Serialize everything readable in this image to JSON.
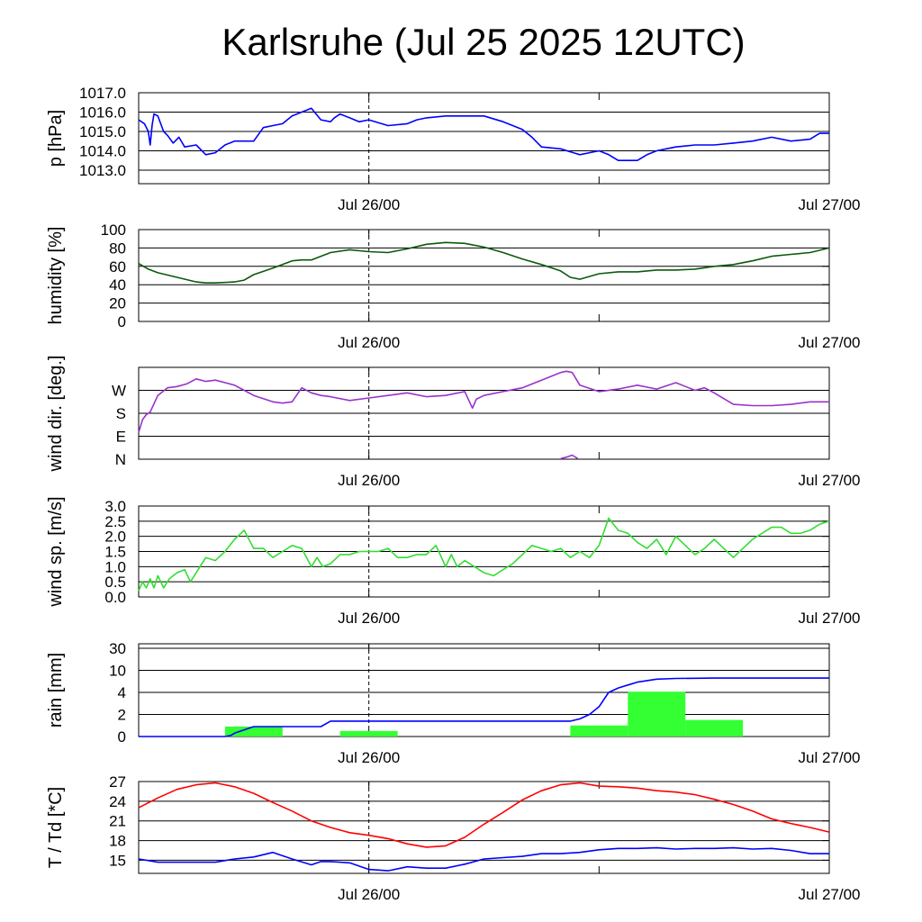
{
  "title": "Karlsruhe (Jul 25 2025 12UTC)",
  "x_tick_labels": [
    "Jul 26/00",
    "Jul 27/00"
  ],
  "colors": {
    "pressure": "#0000ff",
    "humidity": "#0a5a0a",
    "wind_dir": "#9932cc",
    "wind_speed": "#33dd33",
    "rain_bars": "#33ff33",
    "rain_cumulative": "#0000ff",
    "temperature": "#ff0000",
    "dewpoint": "#0000ff"
  },
  "chart_data": [
    {
      "type": "line",
      "ylabel": "p [hPa]",
      "x_unit": "hours from Jul 25 12UTC",
      "xlim": [
        0,
        36
      ],
      "ylim": [
        1012.3,
        1017.0
      ],
      "yticks": [
        1013.0,
        1014.0,
        1015.0,
        1016.0,
        1017.0
      ],
      "ytick_labels": [
        "1013.0",
        "1014.0",
        "1015.0",
        "1016.0",
        "1017.0"
      ],
      "series": [
        {
          "color_key": "pressure",
          "x": [
            0,
            0.3,
            0.5,
            0.6,
            0.7,
            0.8,
            1.0,
            1.3,
            1.5,
            1.8,
            2.1,
            2.4,
            3.0,
            3.5,
            4.0,
            4.5,
            5.0,
            5.5,
            6.0,
            6.5,
            7.0,
            7.5,
            8.0,
            8.5,
            9.0,
            9.5,
            10.0,
            10.2,
            10.5,
            11.0,
            11.5,
            12.0,
            13.0,
            14.0,
            14.5,
            15.0,
            16.0,
            17.0,
            18.0,
            19.0,
            20.0,
            20.5,
            21.0,
            22.0,
            23.0,
            24.0,
            24.5,
            25.0,
            26.0,
            26.5,
            27.0,
            27.5,
            28.0,
            29.0,
            30.0,
            31.0,
            32.0,
            33.0,
            34.0,
            35.0,
            35.5,
            36.0
          ],
          "y": [
            1015.6,
            1015.4,
            1015.0,
            1014.3,
            1015.3,
            1015.9,
            1015.8,
            1015.0,
            1014.8,
            1014.4,
            1014.7,
            1014.2,
            1014.3,
            1013.8,
            1013.9,
            1014.3,
            1014.5,
            1014.5,
            1014.5,
            1015.2,
            1015.3,
            1015.4,
            1015.8,
            1016.0,
            1016.2,
            1015.6,
            1015.5,
            1015.7,
            1015.9,
            1015.7,
            1015.5,
            1015.6,
            1015.3,
            1015.4,
            1015.6,
            1015.7,
            1015.8,
            1015.8,
            1015.8,
            1015.5,
            1015.1,
            1014.7,
            1014.2,
            1014.1,
            1013.8,
            1014.0,
            1013.8,
            1013.5,
            1013.5,
            1013.8,
            1014.0,
            1014.1,
            1014.2,
            1014.3,
            1014.3,
            1014.4,
            1014.5,
            1014.7,
            1014.5,
            1014.6,
            1014.9,
            1014.9
          ]
        }
      ]
    },
    {
      "type": "line",
      "ylabel": "humidity [%]",
      "x_unit": "hours from Jul 25 12UTC",
      "xlim": [
        0,
        36
      ],
      "ylim": [
        0,
        100
      ],
      "yticks": [
        0,
        20,
        40,
        60,
        80,
        100
      ],
      "ytick_labels": [
        "0",
        "20",
        "40",
        "60",
        "80",
        "100"
      ],
      "series": [
        {
          "color_key": "humidity",
          "x": [
            0,
            0.5,
            1,
            2,
            3,
            3.5,
            4,
            5,
            5.5,
            6,
            7,
            8,
            8.5,
            9,
            10,
            11,
            12,
            13,
            14,
            15,
            16,
            17,
            18,
            19,
            20,
            21,
            22,
            22.5,
            23,
            24,
            25,
            26,
            27,
            28,
            29,
            30,
            31,
            32,
            33,
            34,
            35,
            36
          ],
          "y": [
            63,
            57,
            53,
            48,
            43,
            42,
            42,
            43,
            45,
            51,
            58,
            66,
            67,
            67,
            75,
            78,
            76,
            75,
            79,
            84,
            86,
            85,
            81,
            75,
            68,
            62,
            55,
            48,
            46,
            52,
            54,
            54,
            56,
            56,
            57,
            60,
            62,
            66,
            71,
            73,
            75,
            80
          ]
        }
      ]
    },
    {
      "type": "scatter",
      "ylabel": "wind dir. [deg.]",
      "x_unit": "hours from Jul 25 12UTC",
      "xlim": [
        0,
        36
      ],
      "ylim": [
        0,
        360
      ],
      "yticks": [
        0,
        90,
        180,
        270
      ],
      "ytick_labels": [
        "N",
        "E",
        "S",
        "W"
      ],
      "series": [
        {
          "color_key": "wind_dir",
          "x": [
            0,
            0.2,
            0.4,
            0.6,
            1,
            1.5,
            2,
            2.5,
            3,
            3.5,
            4,
            5,
            5.5,
            6,
            7,
            7.5,
            8,
            8.5,
            9,
            9.5,
            10,
            11,
            12,
            13,
            14,
            15,
            16,
            17,
            17.4,
            17.6,
            18,
            19,
            20,
            21,
            22,
            22.3,
            22.6,
            23,
            24,
            25,
            26,
            27,
            28,
            29,
            29.5,
            30,
            31,
            32,
            33,
            34,
            35,
            36
          ],
          "y": [
            105,
            155,
            175,
            185,
            250,
            280,
            285,
            295,
            315,
            305,
            310,
            290,
            270,
            250,
            225,
            220,
            225,
            280,
            260,
            250,
            245,
            230,
            240,
            250,
            260,
            245,
            250,
            265,
            200,
            235,
            250,
            265,
            280,
            310,
            340,
            345,
            340,
            290,
            265,
            275,
            290,
            275,
            300,
            270,
            280,
            260,
            215,
            210,
            210,
            215,
            225,
            225
          ]
        },
        {
          "color_key": "wind_dir",
          "x": [
            22,
            22.3,
            22.6,
            22.9
          ],
          "y": [
            2,
            8,
            16,
            2
          ]
        }
      ]
    },
    {
      "type": "line",
      "ylabel": "wind sp. [m/s]",
      "x_unit": "hours from Jul 25 12UTC",
      "xlim": [
        0,
        36
      ],
      "ylim": [
        0,
        3.0
      ],
      "yticks": [
        0.0,
        0.5,
        1.0,
        1.5,
        2.0,
        2.5,
        3.0
      ],
      "ytick_labels": [
        "0.0",
        "0.5",
        "1.0",
        "1.5",
        "2.0",
        "2.5",
        "3.0"
      ],
      "series": [
        {
          "color_key": "wind_speed",
          "x": [
            0,
            0.2,
            0.4,
            0.6,
            0.8,
            1,
            1.3,
            1.6,
            2,
            2.4,
            2.7,
            3,
            3.5,
            4,
            4.5,
            5,
            5.5,
            6,
            6.5,
            7,
            7.5,
            8,
            8.5,
            9,
            9.3,
            9.6,
            10,
            10.5,
            11,
            11.5,
            12,
            12.5,
            13,
            13.5,
            14,
            14.5,
            15,
            15.5,
            16,
            16.3,
            16.6,
            17,
            17.5,
            18,
            18.5,
            19,
            19.5,
            20,
            20.5,
            21,
            21.5,
            22,
            22.5,
            23,
            23.5,
            24,
            24.5,
            25,
            25.5,
            26,
            26.5,
            27,
            27.5,
            28,
            28.5,
            29,
            29.5,
            30,
            30.5,
            31,
            31.5,
            32,
            32.5,
            33,
            33.5,
            34,
            34.5,
            35,
            35.5,
            36
          ],
          "y": [
            0.2,
            0.5,
            0.3,
            0.6,
            0.3,
            0.7,
            0.3,
            0.6,
            0.8,
            0.9,
            0.5,
            0.8,
            1.3,
            1.2,
            1.5,
            1.9,
            2.2,
            1.6,
            1.6,
            1.3,
            1.5,
            1.7,
            1.6,
            1.0,
            1.3,
            1.0,
            1.1,
            1.4,
            1.4,
            1.5,
            1.5,
            1.5,
            1.6,
            1.3,
            1.3,
            1.4,
            1.4,
            1.7,
            1.0,
            1.4,
            1.0,
            1.2,
            1.0,
            0.8,
            0.7,
            0.9,
            1.1,
            1.4,
            1.7,
            1.6,
            1.5,
            1.6,
            1.3,
            1.5,
            1.3,
            1.7,
            2.6,
            2.2,
            2.1,
            1.8,
            1.6,
            1.9,
            1.4,
            2.0,
            1.7,
            1.4,
            1.6,
            1.9,
            1.6,
            1.3,
            1.6,
            1.9,
            2.1,
            2.3,
            2.3,
            2.1,
            2.1,
            2.2,
            2.4,
            2.5
          ]
        }
      ]
    },
    {
      "type": "bar",
      "ylabel": "rain [mm]",
      "x_unit": "hours from Jul 25 12UTC",
      "xlim": [
        0,
        36
      ],
      "yscale": "custom (0,2,4,10,30 equally spaced)",
      "ytick_values": [
        0,
        2,
        4,
        10,
        30
      ],
      "ytick_labels": [
        "0",
        "2",
        "4",
        "10",
        "30"
      ],
      "bars": [
        {
          "x_start": 4.5,
          "x_end": 7.5,
          "value": 0.9
        },
        {
          "x_start": 10.5,
          "x_end": 13.5,
          "value": 0.5
        },
        {
          "x_start": 22.5,
          "x_end": 25.5,
          "value": 1.0
        },
        {
          "x_start": 25.5,
          "x_end": 28.5,
          "value": 4.2
        },
        {
          "x_start": 28.5,
          "x_end": 31.5,
          "value": 1.5
        }
      ],
      "series": [
        {
          "name": "cumulative",
          "color_key": "rain_cumulative",
          "x": [
            0,
            4.5,
            4.8,
            5.0,
            5.5,
            6.0,
            7.5,
            9.5,
            10.0,
            11.0,
            13.0,
            16.0,
            20.0,
            22.5,
            23.0,
            23.5,
            24.0,
            24.5,
            25.0,
            25.5,
            26.0,
            27.0,
            28.0,
            30.0,
            32.0,
            34.0,
            36.0
          ],
          "y": [
            0,
            0,
            0.1,
            0.3,
            0.6,
            0.9,
            0.9,
            0.9,
            1.4,
            1.4,
            1.4,
            1.4,
            1.4,
            1.4,
            1.6,
            2.0,
            2.7,
            4.0,
            5.2,
            6.0,
            6.8,
            7.6,
            7.8,
            7.9,
            7.9,
            7.9,
            7.9
          ]
        }
      ]
    },
    {
      "type": "line",
      "ylabel": "T / Td [*C]",
      "x_unit": "hours from Jul 25 12UTC",
      "xlim": [
        0,
        36
      ],
      "ylim": [
        13,
        27
      ],
      "yticks": [
        15,
        18,
        21,
        24,
        27
      ],
      "ytick_labels": [
        "15",
        "18",
        "21",
        "24",
        "27"
      ],
      "series": [
        {
          "color_key": "temperature",
          "x": [
            0,
            1,
            2,
            3,
            4,
            5,
            6,
            7,
            8,
            9,
            10,
            11,
            12,
            13,
            14,
            15,
            16,
            17,
            18,
            19,
            20,
            21,
            22,
            23,
            24,
            25,
            26,
            27,
            28,
            29,
            30,
            31,
            32,
            33,
            34,
            35,
            36
          ],
          "y": [
            23,
            24.5,
            25.8,
            26.5,
            26.8,
            26.2,
            25.2,
            23.8,
            22.5,
            21,
            20,
            19.2,
            18.8,
            18.3,
            17.5,
            17,
            17.2,
            18.5,
            20.5,
            22.3,
            24.2,
            25.6,
            26.5,
            26.8,
            26.3,
            26.2,
            26,
            25.6,
            25.4,
            25,
            24.3,
            23.5,
            22.5,
            21.3,
            20.6,
            20,
            19.3
          ]
        },
        {
          "color_key": "dewpoint",
          "x": [
            0,
            1,
            2,
            3,
            4,
            5,
            6,
            7,
            8,
            9,
            9.5,
            10,
            11,
            12,
            13,
            14,
            15,
            16,
            17,
            18,
            19,
            20,
            21,
            22,
            23,
            24,
            25,
            26,
            27,
            28,
            29,
            30,
            31,
            32,
            33,
            34,
            35,
            36
          ],
          "y": [
            15.2,
            14.7,
            14.7,
            14.7,
            14.7,
            15.2,
            15.5,
            16.2,
            15.2,
            14.3,
            14.8,
            14.8,
            14.6,
            13.6,
            13.4,
            14,
            13.8,
            13.8,
            14.4,
            15.2,
            15.4,
            15.6,
            16,
            16,
            16.2,
            16.6,
            16.8,
            16.8,
            16.9,
            16.7,
            16.8,
            16.8,
            16.9,
            16.7,
            16.8,
            16.5,
            16,
            16
          ]
        }
      ]
    }
  ]
}
